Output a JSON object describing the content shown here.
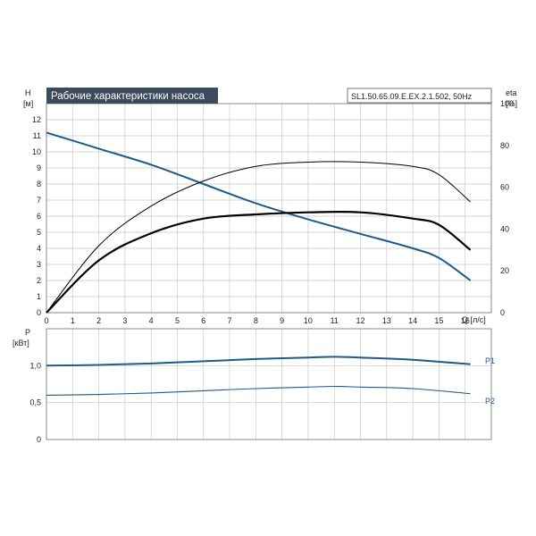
{
  "chart_data": [
    {
      "type": "line",
      "title": "Рабочие характеристики насоса",
      "model": "SL1.50.65.09.E.EX.2.1.502, 50Hz",
      "xlabel": "Q [л/с]",
      "ylabel": "H",
      "ylabel_unit": "[м]",
      "y2label": "eta",
      "y2label_unit": "[%]",
      "xlim": [
        0,
        17
      ],
      "ylim": [
        0,
        13
      ],
      "y2lim": [
        0,
        100
      ],
      "x_ticks": [
        "0",
        "1",
        "2",
        "3",
        "4",
        "5",
        "6",
        "7",
        "8",
        "9",
        "10",
        "11",
        "12",
        "13",
        "14",
        "15",
        "16"
      ],
      "y_ticks": [
        "0",
        "1",
        "2",
        "3",
        "4",
        "5",
        "6",
        "7",
        "8",
        "9",
        "10",
        "11",
        "12"
      ],
      "y2_ticks": [
        "0",
        "20",
        "40",
        "60",
        "80",
        "100"
      ],
      "grid": true,
      "series": [
        {
          "axis": "left",
          "color": "#1e5a8c",
          "x": [
            0,
            2,
            4,
            6,
            8,
            10,
            12,
            14,
            15,
            16.2
          ],
          "values": [
            11.2,
            10.2,
            9.2,
            8.0,
            6.8,
            5.8,
            4.9,
            4.0,
            3.4,
            2.0
          ]
        },
        {
          "axis": "right",
          "color": "#000000",
          "x": [
            0,
            2,
            4,
            6,
            8,
            10,
            12,
            14,
            15,
            16.2
          ],
          "values": [
            0,
            32,
            51,
            63,
            70,
            72,
            72,
            70,
            66,
            53
          ]
        },
        {
          "axis": "right",
          "color": "#000000",
          "x": [
            0,
            2,
            4,
            6,
            8,
            10,
            12,
            14,
            15,
            16.2
          ],
          "values": [
            0,
            25,
            38,
            45,
            47,
            48,
            48,
            45,
            42,
            30
          ]
        }
      ]
    },
    {
      "type": "line",
      "ylabel": "P",
      "ylabel_unit": "[кВт]",
      "xlim": [
        0,
        17
      ],
      "ylim": [
        0,
        1.5
      ],
      "y_ticks": [
        "0",
        "0,5",
        "1,0"
      ],
      "grid": true,
      "series": [
        {
          "name": "P1",
          "color": "#1e5a8c",
          "x": [
            0,
            2,
            4,
            6,
            8,
            10,
            11,
            12,
            14,
            16.2
          ],
          "values": [
            1.0,
            1.01,
            1.03,
            1.06,
            1.09,
            1.11,
            1.12,
            1.11,
            1.08,
            1.02
          ]
        },
        {
          "name": "P2",
          "color": "#1e5a8c",
          "x": [
            0,
            2,
            4,
            6,
            8,
            10,
            11,
            12,
            14,
            16.2
          ],
          "values": [
            0.6,
            0.61,
            0.63,
            0.66,
            0.69,
            0.71,
            0.72,
            0.71,
            0.69,
            0.62
          ]
        }
      ]
    }
  ]
}
